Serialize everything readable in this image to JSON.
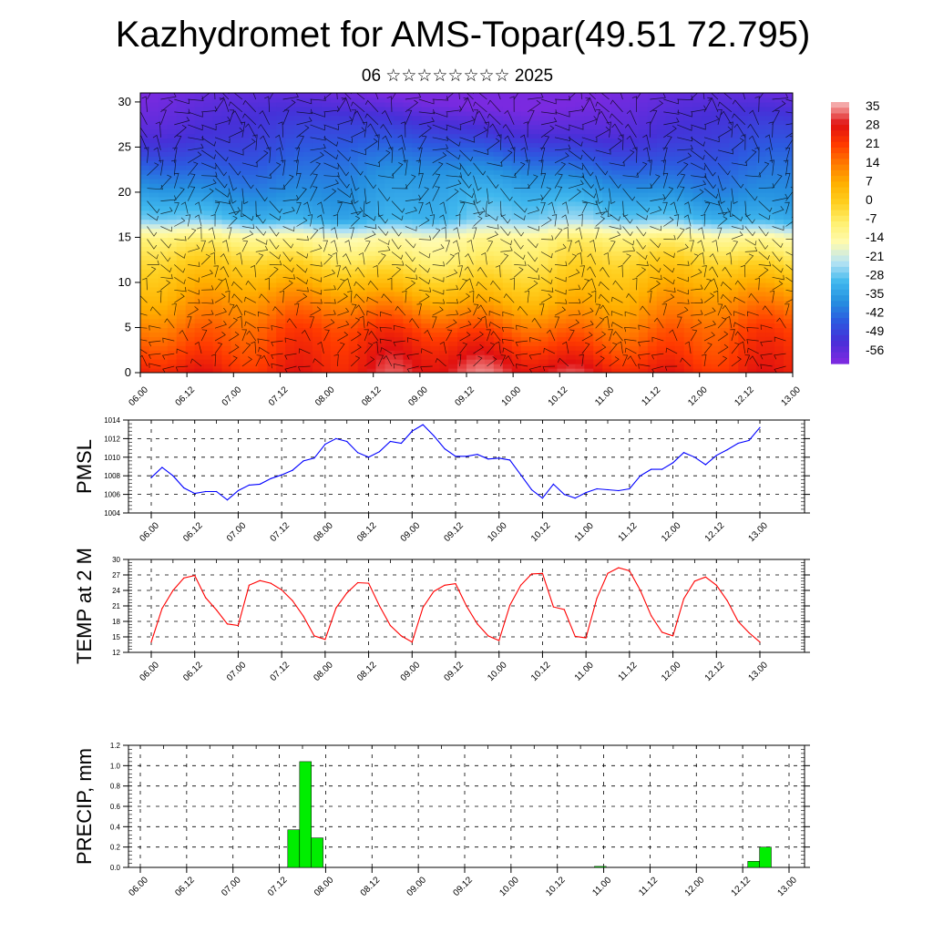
{
  "title": "Kazhydromet for AMS-Topar(49.51 72.795)",
  "subtitle": "06 ☆☆☆☆☆☆☆☆ 2025",
  "chart_data": [
    {
      "type": "heatmap",
      "xticks": [
        "06.00",
        "06.12",
        "07.00",
        "07.12",
        "08.00",
        "08.12",
        "09.00",
        "09.12",
        "10.00",
        "10.12",
        "11.00",
        "11.12",
        "12.00",
        "12.12",
        "13.00"
      ],
      "yticks": [
        "0",
        "5",
        "10",
        "15",
        "20",
        "25",
        "30"
      ],
      "ylim": [
        0,
        31
      ],
      "colorbar_labels": [
        "35",
        "28",
        "21",
        "14",
        "7",
        "0",
        "-7",
        "-14",
        "-21",
        "-28",
        "-35",
        "-42",
        "-49",
        "-56"
      ],
      "colorbar_colors": [
        "#f4a8a8",
        "#e01010",
        "#ff3a00",
        "#ff7a00",
        "#ffb000",
        "#ffd020",
        "#fff070",
        "#fffbb0",
        "#b8e4f4",
        "#40b8ee",
        "#2590e0",
        "#2c5ae0",
        "#4630d8",
        "#7a2ae0"
      ],
      "annotation": "wind barbs overlay"
    },
    {
      "type": "line",
      "ylabel": "PMSL",
      "ylim": [
        1004,
        1014
      ],
      "yticks": [
        "1004",
        "1006",
        "1008",
        "1010",
        "1012",
        "1014"
      ],
      "xticks": [
        "06.00",
        "06.12",
        "07.00",
        "07.12",
        "08.00",
        "08.12",
        "09.00",
        "09.12",
        "10.00",
        "10.12",
        "11.00",
        "11.12",
        "12.00",
        "12.12",
        "13.00"
      ],
      "series": [
        {
          "color": "#0000ff",
          "values": [
            1007.8,
            1008.9,
            1008.0,
            1006.7,
            1006.1,
            1006.3,
            1006.3,
            1005.4,
            1006.4,
            1007.0,
            1007.1,
            1007.7,
            1008.1,
            1008.6,
            1009.6,
            1009.9,
            1011.4,
            1012.0,
            1011.7,
            1010.5,
            1010.0,
            1010.6,
            1011.7,
            1011.5,
            1012.8,
            1013.5,
            1012.3,
            1010.9,
            1010.1,
            1010.1,
            1010.3,
            1009.8,
            1009.9,
            1009.7,
            1008.1,
            1006.5,
            1005.6,
            1007.1,
            1006.0,
            1005.6,
            1006.2,
            1006.6,
            1006.5,
            1006.4,
            1006.6,
            1008.0,
            1008.7,
            1008.7,
            1009.4,
            1010.5,
            1010.0,
            1009.2,
            1010.2,
            1010.8,
            1011.5,
            1011.8,
            1013.2
          ]
        }
      ]
    },
    {
      "type": "line",
      "ylabel": "TEMP at 2 M",
      "ylim": [
        12,
        30
      ],
      "yticks": [
        "12",
        "15",
        "18",
        "21",
        "24",
        "27",
        "30"
      ],
      "xticks": [
        "06.00",
        "06.12",
        "07.00",
        "07.12",
        "08.00",
        "08.12",
        "09.00",
        "09.12",
        "10.00",
        "10.12",
        "11.00",
        "11.12",
        "12.00",
        "12.12",
        "13.00"
      ],
      "series": [
        {
          "color": "#ff0000",
          "values": [
            14.0,
            20.5,
            24.0,
            26.4,
            26.9,
            22.6,
            20.2,
            17.5,
            17.2,
            25.0,
            25.9,
            25.4,
            24.1,
            22.0,
            19.0,
            15.2,
            14.5,
            20.6,
            23.5,
            25.5,
            25.4,
            21.0,
            17.2,
            15.2,
            14.0,
            20.7,
            23.8,
            25.0,
            25.3,
            21.0,
            17.5,
            15.2,
            14.3,
            21.1,
            25.0,
            27.2,
            27.3,
            20.8,
            20.3,
            15.1,
            14.8,
            22.5,
            27.3,
            28.4,
            27.8,
            24.0,
            19.1,
            15.9,
            15.2,
            22.4,
            25.8,
            26.6,
            25.0,
            22.0,
            18.0,
            15.8,
            14.0
          ]
        }
      ]
    },
    {
      "type": "bar",
      "ylabel": "PRECIP, mm",
      "ylim": [
        0,
        1.2
      ],
      "yticks": [
        "0.0",
        "0.2",
        "0.4",
        "0.6",
        "0.8",
        "1.0",
        "1.2"
      ],
      "xticks": [
        "06.00",
        "06.12",
        "07.00",
        "07.12",
        "08.00",
        "08.12",
        "09.00",
        "09.12",
        "10.00",
        "10.12",
        "11.00",
        "11.12",
        "12.00",
        "12.12",
        "13.00"
      ],
      "series": [
        {
          "color": "#00ee00",
          "values": [
            0,
            0,
            0,
            0,
            0,
            0,
            0,
            0,
            0,
            0,
            0,
            0,
            0,
            0.37,
            1.04,
            0.29,
            0,
            0,
            0,
            0,
            0,
            0,
            0,
            0,
            0,
            0,
            0,
            0,
            0,
            0,
            0,
            0,
            0,
            0,
            0,
            0,
            0,
            0,
            0,
            0.01,
            0,
            0,
            0,
            0,
            0,
            0,
            0,
            0,
            0,
            0,
            0,
            0,
            0.06,
            0.2,
            0,
            0
          ]
        }
      ]
    }
  ]
}
